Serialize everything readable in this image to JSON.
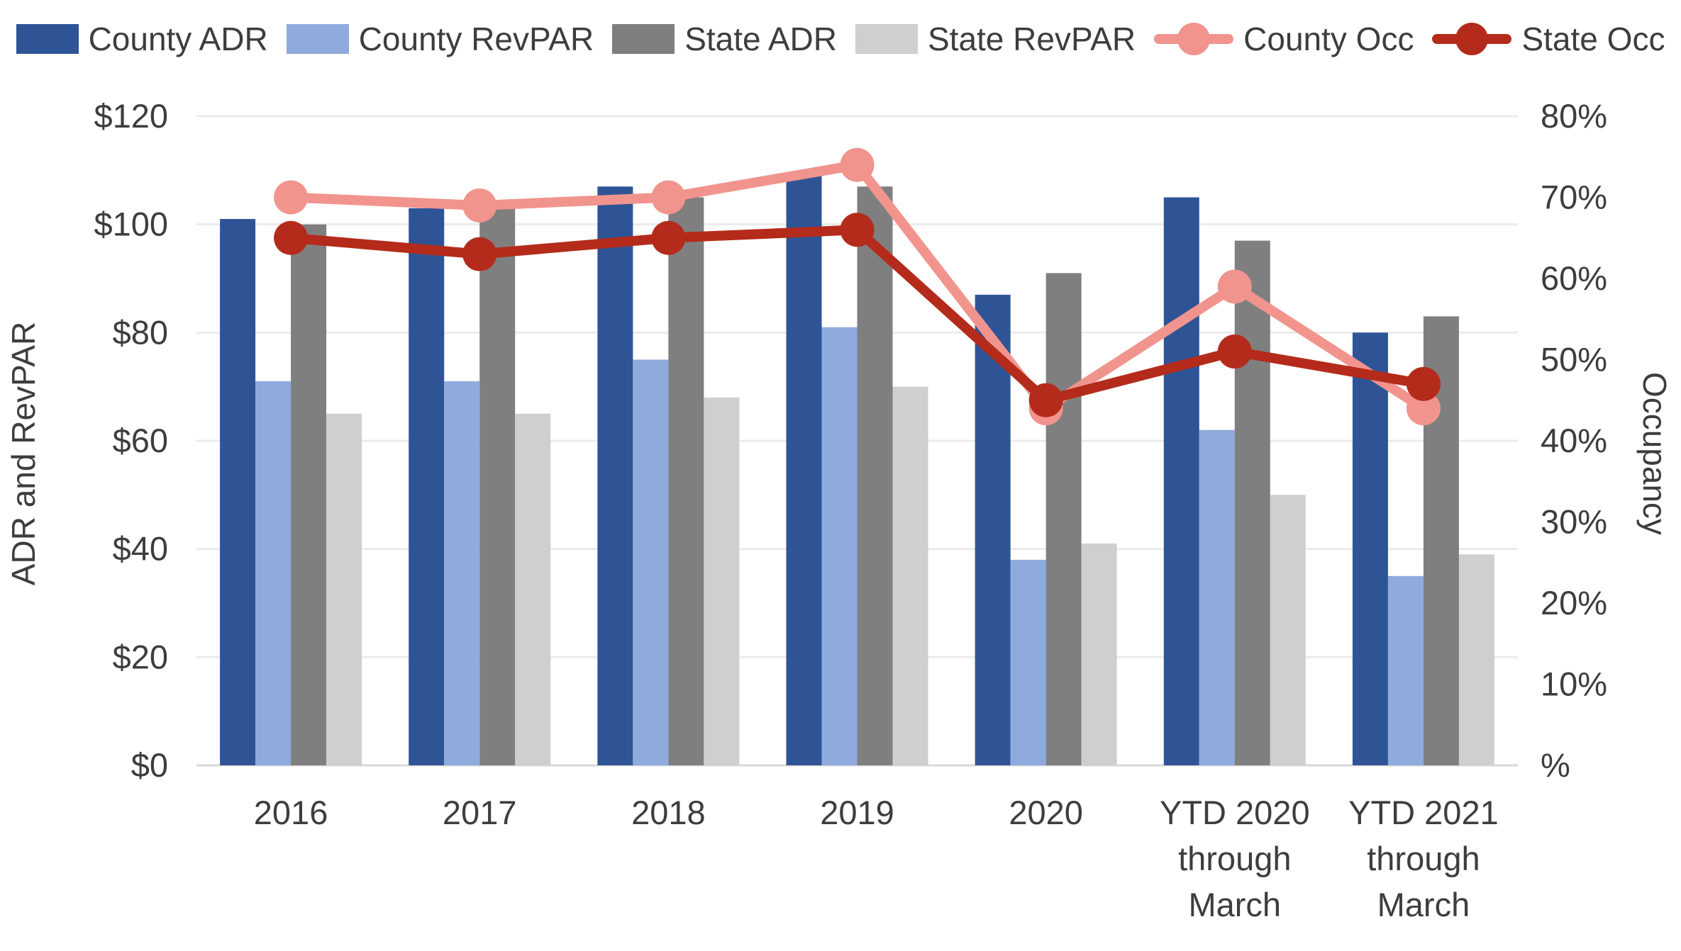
{
  "chart_data": {
    "type": "bar",
    "subtype": "grouped-bars-with-lines-dual-axis",
    "categories": [
      "2016",
      "2017",
      "2018",
      "2019",
      "2020",
      "YTD 2020\nthrough\nMarch",
      "YTD 2021\nthrough\nMarch"
    ],
    "bar_series": [
      {
        "name": "County ADR",
        "color": "#2F5496",
        "values": [
          101,
          103,
          107,
          109,
          87,
          105,
          80
        ]
      },
      {
        "name": "County RevPAR",
        "color": "#8FAADC",
        "values": [
          71,
          71,
          75,
          81,
          38,
          62,
          35
        ]
      },
      {
        "name": "State ADR",
        "color": "#7F7F7F",
        "values": [
          100,
          103,
          105,
          107,
          91,
          97,
          83
        ]
      },
      {
        "name": "State RevPAR",
        "color": "#D0CECE",
        "values": [
          65,
          65,
          68,
          70,
          41,
          50,
          39
        ]
      }
    ],
    "line_series": [
      {
        "name": "County Occ",
        "color": "#F1948D",
        "values": [
          70,
          69,
          70,
          74,
          44,
          59,
          44
        ]
      },
      {
        "name": "State Occ",
        "color": "#B42B1B",
        "values": [
          65,
          63,
          65,
          66,
          45,
          51,
          47
        ]
      }
    ],
    "left_axis": {
      "title": "ADR and RevPAR",
      "min": 0,
      "max": 120,
      "step": 20,
      "ticks": [
        "$0",
        "$20",
        "$40",
        "$60",
        "$80",
        "$100",
        "$120"
      ]
    },
    "right_axis": {
      "title": "Occupancy",
      "min": 0,
      "max": 80,
      "step": 10,
      "ticks": [
        "%",
        "10%",
        "20%",
        "30%",
        "40%",
        "50%",
        "60%",
        "70%",
        "80%"
      ]
    },
    "grid": "horizontal-on",
    "legend_position": "top"
  },
  "colors": {
    "background": "#FFFFFF",
    "text": "#3D3D3D",
    "gridline": "#EBEBEB",
    "axis_line": "#D9D9D9"
  }
}
